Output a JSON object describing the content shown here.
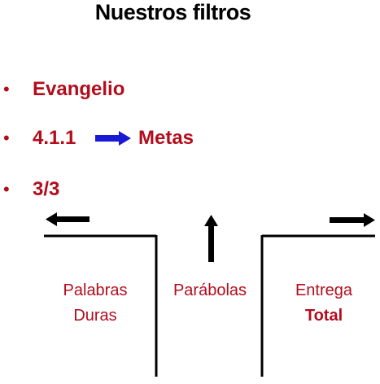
{
  "slide": {
    "title": "Nuestros filtros",
    "bullets": [
      {
        "text": "Evangelio"
      },
      {
        "text": "4.1.1",
        "after_arrow": "Metas"
      },
      {
        "text": "3/3"
      }
    ],
    "bullet_char": "•",
    "accent_color": "#b30d1c",
    "arrow_color": "#1a1ad6",
    "columns": {
      "left": {
        "line1": "Palabras",
        "line2": "Duras"
      },
      "center": {
        "line1": "Parábolas"
      },
      "right": {
        "line1": "Entrega",
        "line2": "Total"
      }
    },
    "icons": [
      "blue-right-arrow-icon",
      "left-arrow-icon",
      "up-arrow-icon",
      "right-arrow-icon"
    ]
  }
}
